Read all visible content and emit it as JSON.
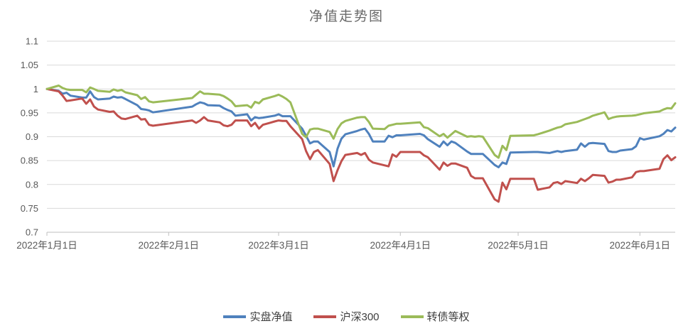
{
  "title": "净值走势图",
  "colors": {
    "series_blue": "#4F81BD",
    "series_red": "#C0504D",
    "series_green": "#9BBB59",
    "gridline": "#D9D9D9",
    "axis_line": "#BFBFBF",
    "axis_text": "#595959",
    "title_text": "#6A6A6A",
    "background": "#FFFFFF"
  },
  "chart_data": {
    "type": "line",
    "title": "净值走势图",
    "grid": true,
    "legend_position": "bottom",
    "y_axis": {
      "min": 0.7,
      "max": 1.1,
      "step": 0.05,
      "tick_labels": [
        "1.1",
        "1.05",
        "1",
        "0.95",
        "0.9",
        "0.85",
        "0.8",
        "0.75",
        "0.7"
      ]
    },
    "x_axis": {
      "start_date": "2022-01-01",
      "end_day": 160,
      "tick_days": [
        0,
        31,
        59,
        90,
        120,
        151
      ],
      "tick_labels": [
        "2022年1月1日",
        "2022年2月1日",
        "2022年3月1日",
        "2022年4月1日",
        "2022年5月1日",
        "2022年6月1日"
      ]
    },
    "dates": [
      "2022-01-01",
      "2022-01-04",
      "2022-01-05",
      "2022-01-06",
      "2022-01-07",
      "2022-01-10",
      "2022-01-11",
      "2022-01-12",
      "2022-01-13",
      "2022-01-14",
      "2022-01-17",
      "2022-01-18",
      "2022-01-19",
      "2022-01-20",
      "2022-01-21",
      "2022-01-24",
      "2022-01-25",
      "2022-01-26",
      "2022-01-27",
      "2022-01-28",
      "2022-02-07",
      "2022-02-08",
      "2022-02-09",
      "2022-02-10",
      "2022-02-11",
      "2022-02-14",
      "2022-02-15",
      "2022-02-16",
      "2022-02-17",
      "2022-02-18",
      "2022-02-21",
      "2022-02-22",
      "2022-02-23",
      "2022-02-24",
      "2022-02-25",
      "2022-02-28",
      "2022-03-01",
      "2022-03-02",
      "2022-03-03",
      "2022-03-04",
      "2022-03-07",
      "2022-03-08",
      "2022-03-09",
      "2022-03-10",
      "2022-03-11",
      "2022-03-14",
      "2022-03-15",
      "2022-03-16",
      "2022-03-17",
      "2022-03-18",
      "2022-03-21",
      "2022-03-22",
      "2022-03-23",
      "2022-03-24",
      "2022-03-25",
      "2022-03-28",
      "2022-03-29",
      "2022-03-30",
      "2022-03-31",
      "2022-04-01",
      "2022-04-06",
      "2022-04-07",
      "2022-04-08",
      "2022-04-11",
      "2022-04-12",
      "2022-04-13",
      "2022-04-14",
      "2022-04-15",
      "2022-04-18",
      "2022-04-19",
      "2022-04-20",
      "2022-04-21",
      "2022-04-22",
      "2022-04-25",
      "2022-04-26",
      "2022-04-27",
      "2022-04-28",
      "2022-04-29",
      "2022-05-05",
      "2022-05-06",
      "2022-05-09",
      "2022-05-10",
      "2022-05-11",
      "2022-05-12",
      "2022-05-13",
      "2022-05-16",
      "2022-05-17",
      "2022-05-18",
      "2022-05-19",
      "2022-05-20",
      "2022-05-23",
      "2022-05-24",
      "2022-05-25",
      "2022-05-26",
      "2022-05-27",
      "2022-05-30",
      "2022-05-31",
      "2022-06-01",
      "2022-06-02",
      "2022-06-06",
      "2022-06-07",
      "2022-06-08",
      "2022-06-09",
      "2022-06-10"
    ],
    "series": [
      {
        "key": "shipan",
        "name": "实盘净值",
        "color": "#4F81BD",
        "values": [
          1.0,
          0.996,
          0.99,
          0.992,
          0.986,
          0.982,
          0.982,
          0.995,
          0.983,
          0.978,
          0.98,
          0.984,
          0.982,
          0.983,
          0.979,
          0.966,
          0.958,
          0.957,
          0.955,
          0.951,
          0.963,
          0.968,
          0.972,
          0.97,
          0.966,
          0.965,
          0.96,
          0.956,
          0.953,
          0.944,
          0.947,
          0.934,
          0.941,
          0.939,
          0.94,
          0.944,
          0.947,
          0.943,
          0.943,
          0.943,
          0.917,
          0.902,
          0.886,
          0.89,
          0.89,
          0.868,
          0.838,
          0.875,
          0.896,
          0.905,
          0.912,
          0.915,
          0.917,
          0.906,
          0.89,
          0.89,
          0.902,
          0.899,
          0.903,
          0.903,
          0.906,
          0.903,
          0.895,
          0.879,
          0.89,
          0.882,
          0.89,
          0.887,
          0.869,
          0.864,
          0.864,
          0.864,
          0.864,
          0.841,
          0.836,
          0.846,
          0.843,
          0.867,
          0.868,
          0.868,
          0.866,
          0.868,
          0.87,
          0.868,
          0.87,
          0.873,
          0.886,
          0.879,
          0.886,
          0.887,
          0.885,
          0.87,
          0.868,
          0.868,
          0.871,
          0.874,
          0.88,
          0.897,
          0.894,
          0.901,
          0.906,
          0.914,
          0.911,
          0.919
        ]
      },
      {
        "key": "hs300",
        "name": "沪深300",
        "color": "#C0504D",
        "values": [
          1.0,
          0.995,
          0.986,
          0.975,
          0.976,
          0.98,
          0.969,
          0.978,
          0.963,
          0.957,
          0.952,
          0.953,
          0.944,
          0.938,
          0.937,
          0.944,
          0.936,
          0.937,
          0.925,
          0.923,
          0.934,
          0.929,
          0.934,
          0.941,
          0.934,
          0.93,
          0.924,
          0.922,
          0.925,
          0.934,
          0.934,
          0.922,
          0.929,
          0.917,
          0.925,
          0.932,
          0.934,
          0.933,
          0.933,
          0.922,
          0.895,
          0.87,
          0.853,
          0.868,
          0.872,
          0.843,
          0.807,
          0.83,
          0.849,
          0.862,
          0.866,
          0.862,
          0.866,
          0.852,
          0.846,
          0.84,
          0.838,
          0.863,
          0.858,
          0.868,
          0.868,
          0.861,
          0.857,
          0.831,
          0.846,
          0.839,
          0.844,
          0.844,
          0.835,
          0.818,
          0.813,
          0.813,
          0.813,
          0.769,
          0.764,
          0.804,
          0.79,
          0.812,
          0.812,
          0.789,
          0.794,
          0.803,
          0.805,
          0.801,
          0.807,
          0.803,
          0.812,
          0.807,
          0.813,
          0.82,
          0.818,
          0.804,
          0.806,
          0.81,
          0.81,
          0.815,
          0.826,
          0.828,
          0.828,
          0.833,
          0.853,
          0.861,
          0.851,
          0.857
        ]
      },
      {
        "key": "zhuanzhai",
        "name": "转债等权",
        "color": "#9BBB59",
        "values": [
          1.0,
          1.007,
          1.002,
          0.999,
          0.998,
          0.998,
          0.993,
          1.003,
          1.0,
          0.996,
          0.994,
          0.999,
          0.996,
          0.998,
          0.993,
          0.987,
          0.979,
          0.983,
          0.974,
          0.972,
          0.981,
          0.988,
          0.995,
          0.99,
          0.99,
          0.988,
          0.985,
          0.98,
          0.974,
          0.964,
          0.966,
          0.961,
          0.973,
          0.97,
          0.978,
          0.985,
          0.988,
          0.984,
          0.979,
          0.972,
          0.906,
          0.899,
          0.915,
          0.917,
          0.917,
          0.91,
          0.896,
          0.916,
          0.928,
          0.933,
          0.94,
          0.941,
          0.941,
          0.931,
          0.917,
          0.916,
          0.923,
          0.925,
          0.927,
          0.927,
          0.93,
          0.92,
          0.918,
          0.901,
          0.906,
          0.898,
          0.905,
          0.912,
          0.9,
          0.901,
          0.9,
          0.901,
          0.9,
          0.862,
          0.856,
          0.881,
          0.872,
          0.902,
          0.903,
          0.905,
          0.913,
          0.916,
          0.919,
          0.921,
          0.926,
          0.931,
          0.934,
          0.937,
          0.94,
          0.944,
          0.951,
          0.937,
          0.94,
          0.942,
          0.943,
          0.944,
          0.945,
          0.947,
          0.949,
          0.953,
          0.957,
          0.96,
          0.959,
          0.97
        ]
      }
    ]
  }
}
